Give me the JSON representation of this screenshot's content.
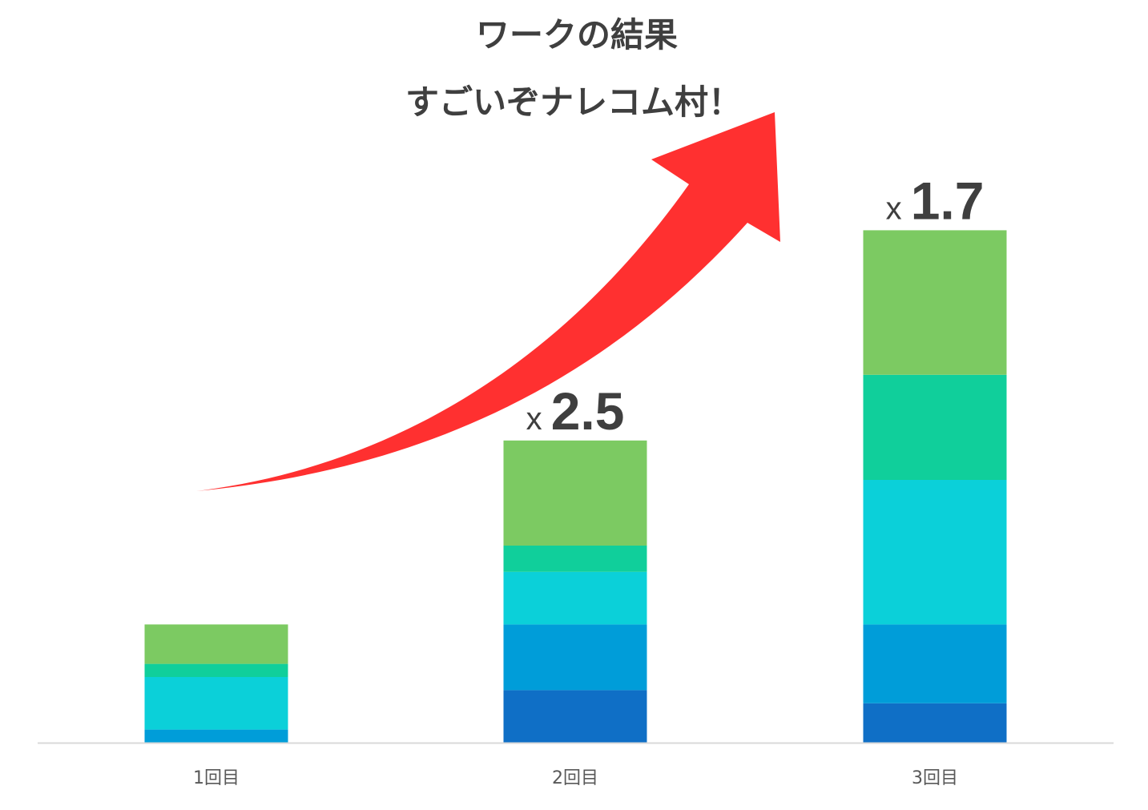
{
  "chart_data": {
    "type": "bar",
    "stacked": true,
    "title": "ワークの結果",
    "subtitle": "すごいぞナレコム村！",
    "categories": [
      "1回目",
      "2回目",
      "3回目"
    ],
    "series": [
      {
        "color": "#0F6FC6",
        "values": [
          0,
          4,
          3
        ]
      },
      {
        "color": "#009DD9",
        "values": [
          1,
          5,
          6
        ]
      },
      {
        "color": "#0BD0D9",
        "values": [
          4,
          4,
          11
        ]
      },
      {
        "color": "#10CF9B",
        "values": [
          1,
          2,
          8
        ]
      },
      {
        "color": "#7CCA62",
        "values": [
          3,
          8,
          11
        ]
      }
    ],
    "ylim": [
      0,
      39
    ],
    "grid": false,
    "legend": "none",
    "annotations": [
      {
        "category": "2回目",
        "prefix": "x",
        "value": "2.5"
      },
      {
        "category": "3回目",
        "prefix": "x",
        "value": "1.7"
      }
    ],
    "arrow": {
      "color": "#FF3030",
      "direction": "up-right"
    }
  }
}
